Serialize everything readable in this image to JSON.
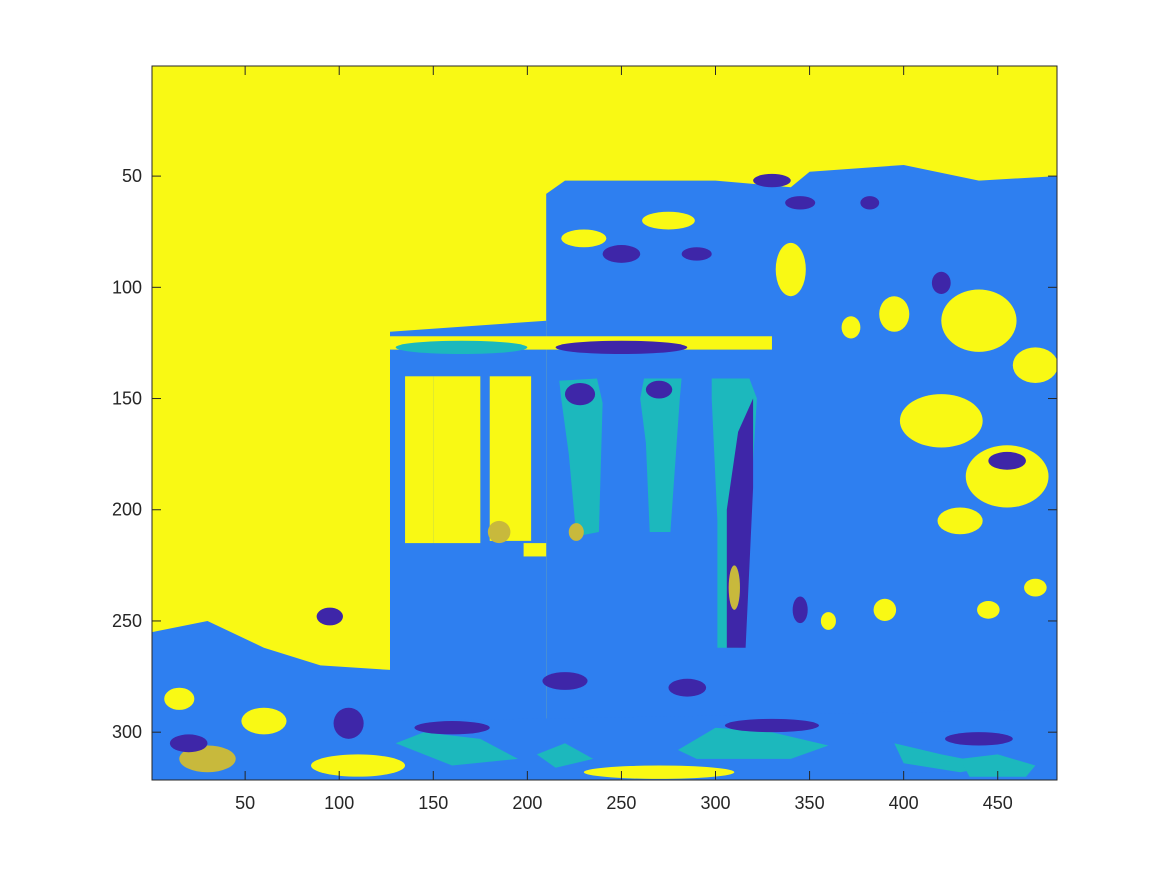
{
  "chart_data": {
    "type": "heatmap",
    "title": "",
    "xlabel": "",
    "ylabel": "",
    "image_size": {
      "columns": 481,
      "rows": 321
    },
    "xlim": [
      0.5,
      481.5
    ],
    "ylim": [
      0.5,
      321.5
    ],
    "y_direction": "reverse",
    "x_ticks": [
      50,
      100,
      150,
      200,
      250,
      300,
      350,
      400,
      450
    ],
    "x_tick_labels": [
      "50",
      "100",
      "150",
      "200",
      "250",
      "300",
      "350",
      "400",
      "450"
    ],
    "y_ticks": [
      50,
      100,
      150,
      200,
      250,
      300
    ],
    "y_tick_labels": [
      "50",
      "100",
      "150",
      "200",
      "250",
      "300"
    ],
    "grid": false,
    "colormap": "parula",
    "class_colors": [
      "#3e26a8",
      "#2e7ff0",
      "#1cb8bd",
      "#c8b93c",
      "#f9f914"
    ],
    "background_class_color": "#f9f914"
  }
}
